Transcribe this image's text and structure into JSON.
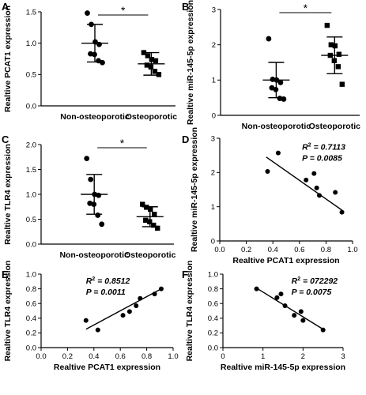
{
  "chart_data": [
    {
      "panel": "A",
      "type": "scatter",
      "ylabel": "Realtive PCAT1 expression",
      "categories": [
        "Non-osteoporotic",
        "Osteoporotic"
      ],
      "ylim": [
        0,
        1.5
      ],
      "yticks": [
        "0.0",
        "0.5",
        "1.0",
        "1.5"
      ],
      "significance": "*",
      "series": [
        {
          "marker": "circle",
          "values": [
            1.48,
            1.3,
            1.02,
            0.98,
            0.83,
            0.82,
            0.72,
            0.69
          ],
          "mean": 1.0,
          "sd": 0.3
        },
        {
          "marker": "square",
          "values": [
            0.85,
            0.8,
            0.74,
            0.72,
            0.65,
            0.62,
            0.55,
            0.5
          ],
          "mean": 0.67,
          "sd": 0.18
        }
      ]
    },
    {
      "panel": "B",
      "type": "scatter",
      "ylabel": "Realtive miR-145-5p expression",
      "categories": [
        "Non-osteoporotic",
        "Osteoporotic"
      ],
      "ylim": [
        0,
        3
      ],
      "yticks": [
        "0",
        "1",
        "2",
        "3"
      ],
      "significance": "*",
      "series": [
        {
          "marker": "circle",
          "values": [
            2.17,
            1.02,
            1.0,
            0.93,
            0.78,
            0.73,
            0.48,
            0.46
          ],
          "mean": 1.0,
          "sd": 0.5
        },
        {
          "marker": "square",
          "values": [
            2.55,
            2.0,
            1.97,
            1.73,
            1.7,
            1.55,
            1.38,
            0.88
          ],
          "mean": 1.7,
          "sd": 0.52
        }
      ]
    },
    {
      "panel": "C",
      "type": "scatter",
      "ylabel": "Realtive TLR4 expression",
      "categories": [
        "Non-osteoporotic",
        "Osteoporotic"
      ],
      "ylim": [
        0,
        2.0
      ],
      "yticks": [
        "0.0",
        "0.5",
        "1.0",
        "1.5",
        "2.0"
      ],
      "significance": "*",
      "series": [
        {
          "marker": "circle",
          "values": [
            1.72,
            1.3,
            1.0,
            0.98,
            0.82,
            0.8,
            0.58,
            0.4
          ],
          "mean": 1.0,
          "sd": 0.4
        },
        {
          "marker": "square",
          "values": [
            0.8,
            0.74,
            0.7,
            0.6,
            0.48,
            0.45,
            0.38,
            0.32
          ],
          "mean": 0.55,
          "sd": 0.2
        }
      ]
    },
    {
      "panel": "D",
      "type": "scatter",
      "xlabel": "Realtive PCAT1 expression",
      "ylabel": "Realtive miR-145-5p expression",
      "xlim": [
        0,
        1.0
      ],
      "ylim": [
        0,
        3
      ],
      "xticks": [
        "0.0",
        "0.2",
        "0.4",
        "0.6",
        "0.8",
        "1.0"
      ],
      "yticks": [
        "0",
        "1",
        "2",
        "3"
      ],
      "r2_label": "R",
      "r2_value": " = 0.7113",
      "p_label": "P",
      "p_value": " = 0.0085",
      "x": [
        0.36,
        0.44,
        0.65,
        0.71,
        0.73,
        0.75,
        0.87,
        0.92
      ],
      "y": [
        2.03,
        2.57,
        1.78,
        1.97,
        1.55,
        1.33,
        1.42,
        0.84
      ],
      "fit_x": [
        0.35,
        0.92
      ],
      "fit_y": [
        2.45,
        0.9
      ]
    },
    {
      "panel": "E",
      "type": "scatter",
      "xlabel": "Realtive PCAT1 expression",
      "ylabel": "Realtive TLR4 expression",
      "xlim": [
        0,
        1.0
      ],
      "ylim": [
        0,
        1.0
      ],
      "xticks": [
        "0.0",
        "0.2",
        "0.4",
        "0.6",
        "0.8",
        "1.0"
      ],
      "yticks": [
        "0.0",
        "0.2",
        "0.4",
        "0.6",
        "0.8",
        "1.0"
      ],
      "r2_label": "R",
      "r2_value": " = 0.8512",
      "p_label": "P",
      "p_value": " = 0.0011",
      "x": [
        0.34,
        0.43,
        0.62,
        0.67,
        0.72,
        0.75,
        0.86,
        0.91
      ],
      "y": [
        0.37,
        0.24,
        0.44,
        0.49,
        0.57,
        0.67,
        0.73,
        0.8
      ],
      "fit_x": [
        0.34,
        0.91
      ],
      "fit_y": [
        0.25,
        0.8
      ]
    },
    {
      "panel": "F",
      "type": "scatter",
      "xlabel": "Realtive miR-145-5p expression",
      "ylabel": "Realtive TLR4 expression",
      "xlim": [
        0,
        3
      ],
      "ylim": [
        0,
        1.0
      ],
      "xticks": [
        "0",
        "1",
        "2",
        "3"
      ],
      "yticks": [
        "0.0",
        "0.2",
        "0.4",
        "0.6",
        "0.8",
        "1.0"
      ],
      "r2_label": "R",
      "r2_value": " = 072292",
      "p_label": "P",
      "p_value": " = 0.0075",
      "x": [
        0.84,
        1.35,
        1.45,
        1.55,
        1.78,
        1.95,
        2.0,
        2.5
      ],
      "y": [
        0.8,
        0.68,
        0.73,
        0.57,
        0.44,
        0.49,
        0.37,
        0.24
      ],
      "fit_x": [
        0.84,
        2.5
      ],
      "fit_y": [
        0.81,
        0.25
      ]
    }
  ]
}
